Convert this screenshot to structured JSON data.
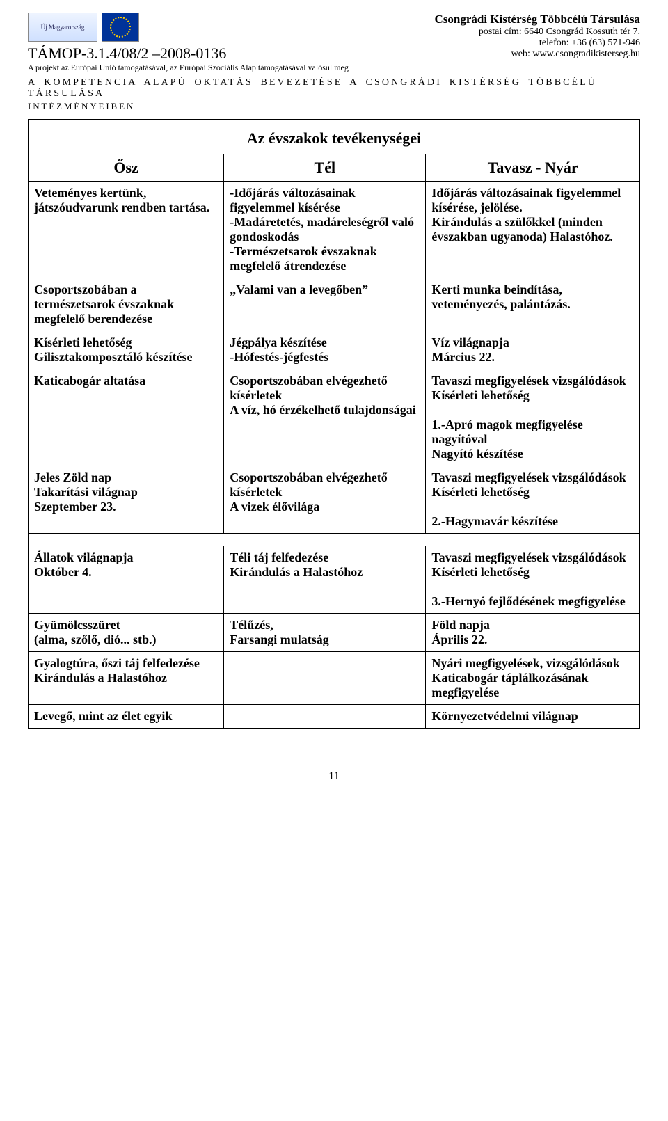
{
  "header": {
    "tamop": "TÁMOP-3.1.4/08/2 –2008-0136",
    "eu_note": "A projekt az Európai Unió támogatásával, az Európai Szociális Alap támogatásával valósul meg",
    "org_name": "Csongrádi Kistérség Többcélú Társulása",
    "postal": "postai cím: 6640 Csongrád Kossuth tér 7.",
    "phone": "telefon: +36 (63) 571-946",
    "web": "web: www.csongradikisterseg.hu",
    "banner": "A   KOMPETENCIA   ALAPÚ   OKTATÁS   BEVEZETÉSE   A   CSONGRÁDI   KISTÉRSÉG   TÖBBCÉLÚ   TÁRSULÁSA",
    "banner2": "INTÉZMÉNYEIBEN"
  },
  "table": {
    "title": "Az évszakok tevékenységei",
    "cols": {
      "c1": "Ősz",
      "c2": "Tél",
      "c3": "Tavasz - Nyár"
    },
    "r1": {
      "osz": "Veteményes kertünk, játszóudvarunk rendben tartása.",
      "tel": "-Időjárás változásainak figyelemmel kísérése\n-Madáretetés, madáreleségről való gondoskodás\n-Természetsarok évszaknak megfelelő átrendezése",
      "tav": "Időjárás változásainak figyelemmel\nkísérése, jelölése.\nKirándulás a szülőkkel (minden évszakban ugyanoda) Halastóhoz."
    },
    "r2": {
      "osz": "Csoportszobában a természetsarok évszaknak megfelelő berendezése",
      "tel": "„Valami van a levegőben”",
      "tav": "Kerti munka beindítása, veteményezés, palántázás."
    },
    "r3": {
      "osz": "Kísérleti lehetőség\nGilisztakomposztáló készítése",
      "tel": "Jégpálya készítése\n-Hófestés-jégfestés",
      "tav": "Víz világnapja\nMárcius 22."
    },
    "r4": {
      "osz": "Katicabogár altatása",
      "tel": "Csoportszobában elvégezhető kísérletek\nA víz, hó érzékelhető tulajdonságai",
      "tav_a": "Tavaszi megfigyelések vizsgálódások\nKísérleti lehetőség",
      "tav_b": "1.-Apró magok megfigyelése nagyítóval\nNagyító készítése"
    },
    "r5": {
      "osz": "Jeles Zöld nap\nTakarítási világnap\nSzeptember 23.",
      "tel": "Csoportszobában elvégezhető kísérletek\nA vizek élővilága",
      "tav_a": "Tavaszi megfigyelések vizsgálódások\nKísérleti lehetőség",
      "tav_b": "2.-Hagymavár készítése"
    },
    "r6": {
      "osz": "Állatok világnapja\n   Október 4.",
      "tel": "Téli táj felfedezése\nKirándulás a Halastóhoz",
      "tav_a": "Tavaszi megfigyelések vizsgálódások\nKísérleti lehetőség",
      "tav_b": "3.-Hernyó fejlődésének megfigyelése"
    },
    "r7": {
      "osz": "Gyümölcsszüret\n(alma, szőlő, dió... stb.)",
      "tel": "Télűzés,\nFarsangi mulatság",
      "tav": "Föld napja\nÁprilis 22."
    },
    "r8": {
      "osz": "Gyalogtúra, őszi táj felfedezése\nKirándulás a Halastóhoz",
      "tel": "",
      "tav": "Nyári megfigyelések, vizsgálódások\nKaticabogár táplálkozásának megfigyelése"
    },
    "r9": {
      "osz": "Levegő, mint az élet egyik",
      "tel": "",
      "tav": "Környezetvédelmi világnap"
    }
  },
  "pagenum": "11"
}
